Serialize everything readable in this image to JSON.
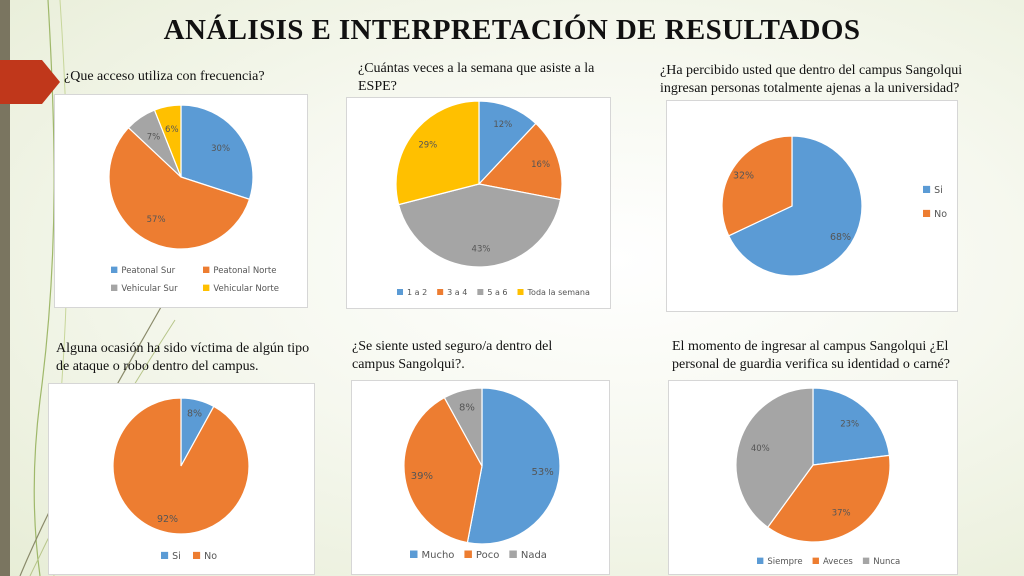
{
  "title": "ANÁLISIS E INTERPRETACIÓN DE RESULTADOS",
  "charts": [
    {
      "question": "¿Que acceso utiliza con frecuencia?",
      "type": "pie",
      "categories": [
        "Peatonal Sur",
        "Peatonal Norte",
        "Vehicular Sur",
        "Vehicular Norte"
      ],
      "values": [
        30,
        57,
        7,
        6
      ],
      "labels": [
        "30%",
        "57%",
        "7%",
        "6%"
      ],
      "colors": [
        "#5b9bd5",
        "#ed7d31",
        "#a5a5a5",
        "#ffc000"
      ],
      "legend_position": "bottom"
    },
    {
      "question": "¿Cuántas veces a la semana que asiste a la ESPE?",
      "type": "pie",
      "categories": [
        "1 a 2",
        "3 a 4",
        "5 a 6",
        "Toda la semana"
      ],
      "values": [
        12,
        16,
        43,
        29
      ],
      "labels": [
        "12%",
        "16%",
        "43%",
        "29%"
      ],
      "colors": [
        "#5b9bd5",
        "#ed7d31",
        "#a5a5a5",
        "#ffc000"
      ],
      "legend_position": "bottom"
    },
    {
      "question": "¿Ha percibido usted que dentro del campus Sangolqui ingresan personas totalmente ajenas a la universidad?",
      "type": "pie",
      "categories": [
        "Si",
        "No"
      ],
      "values": [
        68,
        32
      ],
      "labels": [
        "68%",
        "32%"
      ],
      "colors": [
        "#5b9bd5",
        "#ed7d31"
      ],
      "legend_position": "right"
    },
    {
      "question": "Alguna ocasión ha sido víctima de algún tipo de ataque o robo dentro del campus.",
      "type": "pie",
      "categories": [
        "Si",
        "No"
      ],
      "values": [
        8,
        92
      ],
      "labels": [
        "8%",
        "92%"
      ],
      "colors": [
        "#5b9bd5",
        "#ed7d31"
      ],
      "legend_position": "bottom"
    },
    {
      "question": "¿Se siente usted seguro/a dentro del campus Sangolqui?.",
      "type": "pie",
      "categories": [
        "Mucho",
        "Poco",
        "Nada"
      ],
      "values": [
        53,
        39,
        8
      ],
      "labels": [
        "53%",
        "39%",
        "8%"
      ],
      "colors": [
        "#5b9bd5",
        "#ed7d31",
        "#a5a5a5"
      ],
      "legend_position": "bottom"
    },
    {
      "question": "El momento de ingresar al campus Sangolqui ¿El personal de guardia verifica su identidad o carné?",
      "type": "pie",
      "categories": [
        "Siempre",
        "Aveces",
        "Nunca"
      ],
      "values": [
        23,
        37,
        40
      ],
      "labels": [
        "23%",
        "37%",
        "40%"
      ],
      "colors": [
        "#5b9bd5",
        "#ed7d31",
        "#a5a5a5"
      ],
      "legend_position": "bottom"
    }
  ]
}
